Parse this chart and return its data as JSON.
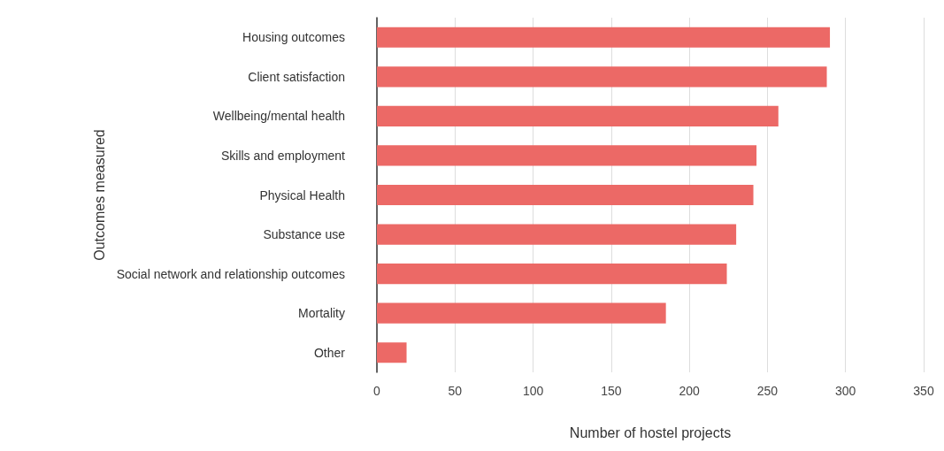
{
  "chart_data": {
    "type": "bar",
    "orientation": "horizontal",
    "xlabel": "Number of hostel projects",
    "ylabel": "Outcomes measured",
    "categories": [
      "Housing outcomes",
      "Client satisfaction",
      "Wellbeing/mental health",
      "Skills and employment",
      "Physical Health",
      "Substance use",
      "Social network and relationship outcomes",
      "Mortality",
      "Other"
    ],
    "values": [
      290,
      288,
      257,
      243,
      241,
      230,
      224,
      185,
      19
    ],
    "color": "#ec6966",
    "xlim": [
      0,
      350
    ],
    "xticks": [
      0,
      50,
      100,
      150,
      200,
      250,
      300,
      350
    ],
    "grid": "x"
  }
}
